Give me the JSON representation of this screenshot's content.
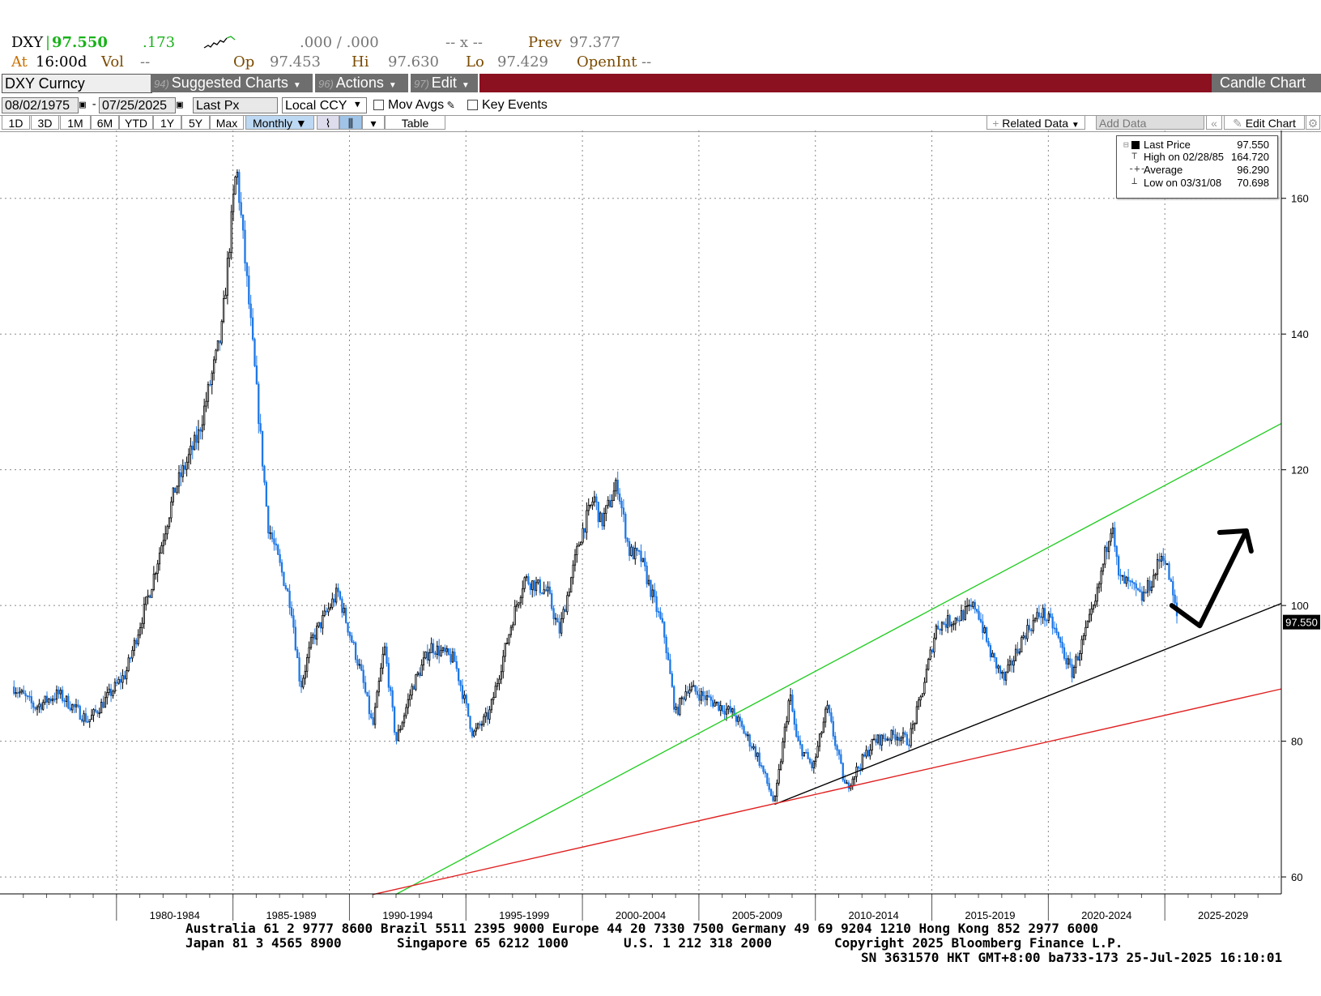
{
  "quote": {
    "ticker": "DXY",
    "last": "97.550",
    "change": ".173",
    "bid_ask": ".000 / .000",
    "size": "-- x --",
    "prev_label": "Prev",
    "prev": "97.377",
    "at_label": "At",
    "time": "16:00d",
    "vol_label": "Vol",
    "vol": "--",
    "op_label": "Op",
    "op": "97.453",
    "hi_label": "Hi",
    "hi": "97.630",
    "lo_label": "Lo",
    "lo": "97.429",
    "oi_label": "OpenInt",
    "oi": "--"
  },
  "toolbar": {
    "security": "DXY Curncy",
    "menus": [
      {
        "num": "94)",
        "label": "Suggested Charts"
      },
      {
        "num": "96)",
        "label": "Actions"
      },
      {
        "num": "97)",
        "label": "Edit"
      }
    ],
    "chart_type": "Candle Chart"
  },
  "controls": {
    "start_date": "08/02/1975",
    "end_date": "07/25/2025",
    "field": "Last Px",
    "currency": "Local CCY",
    "mov_avgs": "Mov Avgs",
    "key_events": "Key Events"
  },
  "tabs": {
    "periods": [
      "1D",
      "3D",
      "1M",
      "6M",
      "YTD",
      "1Y",
      "5Y",
      "Max"
    ],
    "frequency": "Monthly",
    "table": "Table",
    "related": "Related Data",
    "add_data": "Add Data",
    "edit_chart": "Edit Chart"
  },
  "legend": {
    "rows": [
      {
        "label": "Last Price",
        "value": "97.550"
      },
      {
        "label": "High on 02/28/85",
        "value": "164.720"
      },
      {
        "label": "Average",
        "value": "96.290"
      },
      {
        "label": "Low on 03/31/08",
        "value": "70.698"
      }
    ]
  },
  "chart_data": {
    "type": "candlestick",
    "series": [
      {
        "name": "Last Price",
        "x": [
          1975.6,
          1976.5,
          1977.5,
          1978.8,
          1979.5,
          1980.4,
          1981.5,
          1982.5,
          1983.5,
          1984.5,
          1985.15,
          1985.8,
          1986.5,
          1987.5,
          1987.9,
          1988.4,
          1989.5,
          1990.5,
          1991.0,
          1991.5,
          1992.0,
          1992.7,
          1993.5,
          1994.5,
          1995.3,
          1996.0,
          1997.0,
          1997.5,
          1998.5,
          1999.0,
          1999.9,
          2000.5,
          2000.8,
          2001.5,
          2002.0,
          2002.5,
          2003.5,
          2004.0,
          2004.5,
          2005.5,
          2006.5,
          2007.5,
          2008.25,
          2008.9,
          2009.2,
          2009.9,
          2010.5,
          2011.3,
          2012.5,
          2013.5,
          2014.0,
          2014.5,
          2015.2,
          2016.0,
          2016.9,
          2017.5,
          2018.1,
          2019.0,
          2019.7,
          2020.2,
          2021.0,
          2022.0,
          2022.75,
          2023.0,
          2023.5,
          2024.0,
          2024.5,
          2024.9,
          2025.2,
          2025.56
        ],
        "values": [
          88,
          85,
          87,
          83,
          86,
          90,
          103,
          117,
          125,
          140,
          164.7,
          140,
          112,
          100,
          88,
          95,
          102,
          90,
          82,
          94,
          80,
          88,
          94,
          92,
          81,
          84,
          98,
          104,
          102,
          96,
          110,
          116,
          112,
          118,
          108,
          107,
          96,
          84,
          88,
          86,
          84,
          78,
          70.7,
          87,
          80,
          76,
          85,
          73,
          80,
          81,
          80,
          86,
          97,
          98,
          100,
          93,
          89,
          96,
          99,
          97,
          90,
          100,
          113,
          104,
          103,
          101,
          104,
          108,
          104,
          97.55
        ]
      }
    ],
    "trendlines": [
      {
        "name": "upper channel",
        "color": "#22cc22",
        "x": [
          1992.0,
          2030.0
        ],
        "y": [
          57.44,
          126.82
        ]
      },
      {
        "name": "lower trend",
        "color": "#000000",
        "x": [
          2008.25,
          2030.0
        ],
        "y": [
          70.7,
          100.3
        ]
      },
      {
        "name": "long-term support",
        "color": "#e02020",
        "x": [
          1991.0,
          2030.0
        ],
        "y": [
          57.4,
          87.7
        ]
      }
    ],
    "annotation": {
      "type": "arrow",
      "color": "#000000",
      "x": [
        2025.3,
        2026.5,
        2028.5
      ],
      "y": [
        100.0,
        97.0,
        111.0
      ]
    },
    "last_value_label": "97.550",
    "xlim": [
      1975.0,
      2030.0
    ],
    "ylim": [
      57.5,
      170.0
    ],
    "yticks": [
      60,
      80,
      100,
      120,
      140,
      160
    ],
    "xtick_groups": [
      "1980-1984",
      "1985-1989",
      "1990-1994",
      "1995-1999",
      "2000-2004",
      "2005-2009",
      "2010-2014",
      "2015-2019",
      "2020-2024",
      "2025-2029"
    ],
    "grid": true,
    "legend_position": "top-right"
  },
  "footer": {
    "line1": "Australia 61 2 9777 8600 Brazil 5511 2395 9000 Europe 44 20 7330 7500 Germany 49 69 9204 1210 Hong Kong 852 2977 6000",
    "line2a": "Japan 81 3 4565 8900",
    "line2b": "Singapore 65 6212 1000",
    "line2c": "U.S. 1 212 318 2000",
    "line2d": "Copyright 2025 Bloomberg Finance L.P.",
    "line3": "SN 3631570 HKT  GMT+8:00 ba733-173 25-Jul-2025 16:10:01"
  }
}
